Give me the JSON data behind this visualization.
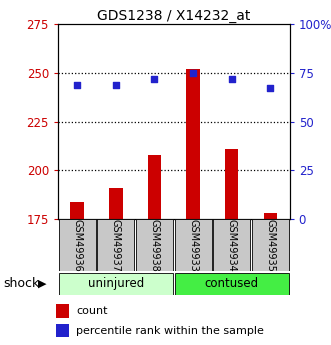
{
  "title": "GDS1238 / X14232_at",
  "samples": [
    "GSM49936",
    "GSM49937",
    "GSM49938",
    "GSM49933",
    "GSM49934",
    "GSM49935"
  ],
  "count_values": [
    184,
    191,
    208,
    252,
    211,
    178
  ],
  "percentile_values": [
    69,
    69,
    72,
    75,
    72,
    67
  ],
  "ylim_left": [
    175,
    275
  ],
  "ylim_right": [
    0,
    100
  ],
  "yticks_left": [
    175,
    200,
    225,
    250,
    275
  ],
  "yticks_right": [
    0,
    25,
    50,
    75,
    100
  ],
  "yticklabels_right": [
    "0",
    "25",
    "50",
    "75",
    "100%"
  ],
  "bar_color": "#cc0000",
  "dot_color": "#2222cc",
  "bar_width": 0.35,
  "shock_label": "shock",
  "legend_count": "count",
  "legend_pct": "percentile rank within the sample",
  "bg_color": "#ffffff",
  "sample_area_color": "#c8c8c8",
  "left_tick_color": "#cc0000",
  "right_tick_color": "#2222cc",
  "uninjured_color": "#ccffcc",
  "contused_color": "#44ee44",
  "group_spans": [
    [
      0,
      2,
      "uninjured"
    ],
    [
      3,
      5,
      "contused"
    ]
  ]
}
